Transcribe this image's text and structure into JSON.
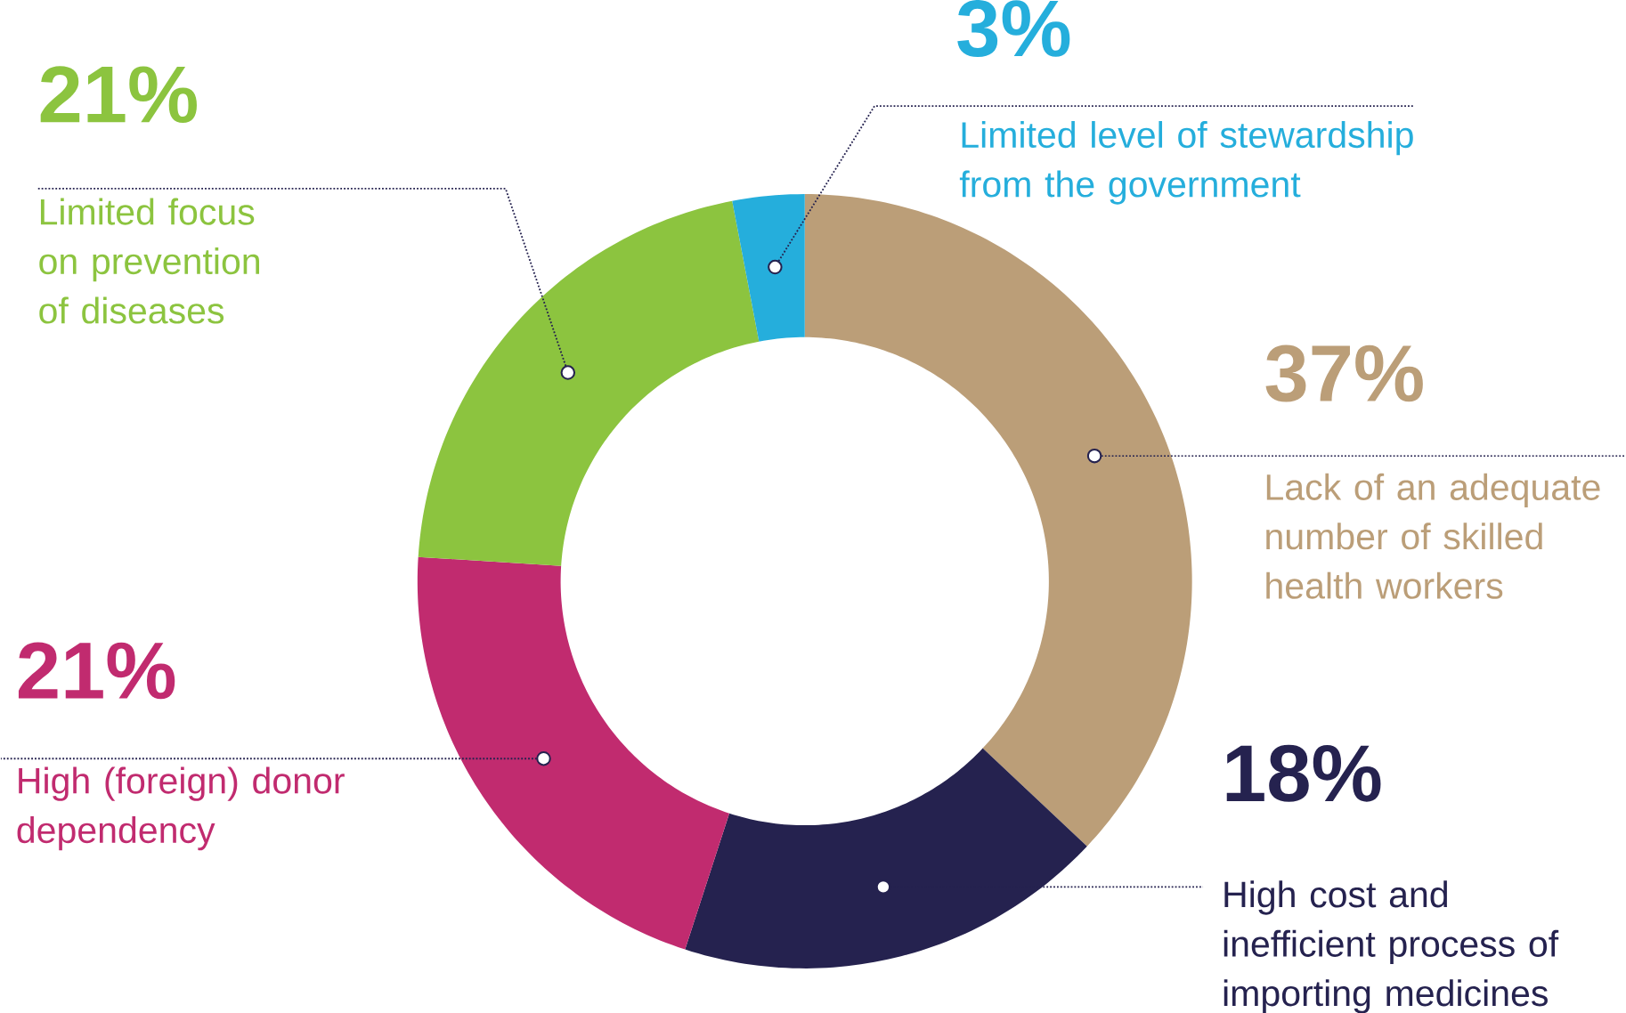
{
  "chart_data": {
    "type": "donut",
    "categories": [
      "Lack of an adequate number of skilled health workers",
      "High cost and inefficient process of importing medicines",
      "High (foreign) donor dependency",
      "Limited focus on prevention of diseases",
      "Limited level of stewardship from the government"
    ],
    "values": [
      37,
      18,
      21,
      21,
      3
    ],
    "colors": [
      "#bb9e78",
      "#25224f",
      "#c12b6f",
      "#8cc43f",
      "#25aedc"
    ],
    "value_labels": [
      "37%",
      "18%",
      "21%",
      "21%",
      "3%"
    ]
  }
}
